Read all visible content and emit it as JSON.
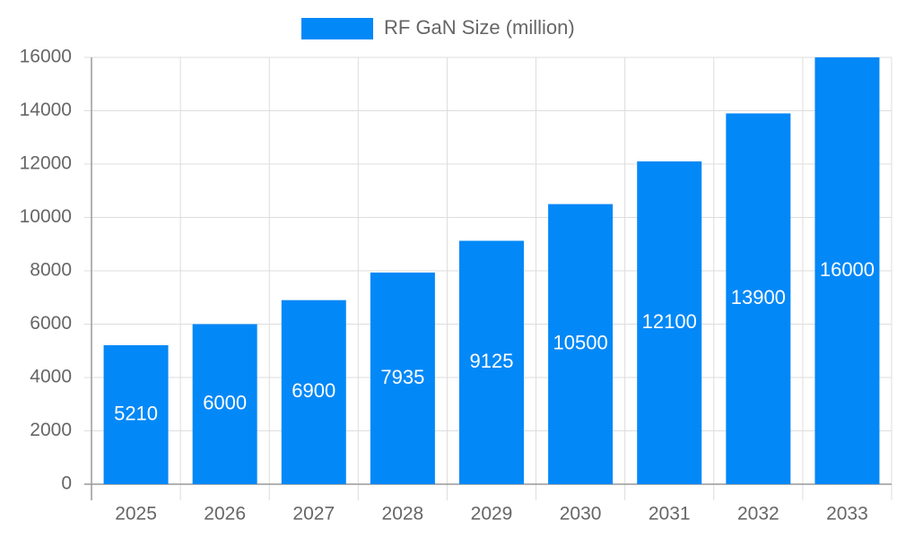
{
  "chart_data": {
    "type": "bar",
    "categories": [
      "2025",
      "2026",
      "2027",
      "2028",
      "2029",
      "2030",
      "2031",
      "2032",
      "2033"
    ],
    "series": [
      {
        "name": "RF GaN Size (million)",
        "color": "#0388f7",
        "values": [
          5210,
          6000,
          6900,
          7935,
          9125,
          10500,
          12100,
          13900,
          16000
        ]
      }
    ],
    "ylim": [
      0,
      16000
    ],
    "yticks": [
      0,
      2000,
      4000,
      6000,
      8000,
      10000,
      12000,
      14000,
      16000
    ],
    "grid": true,
    "legend": "top"
  }
}
